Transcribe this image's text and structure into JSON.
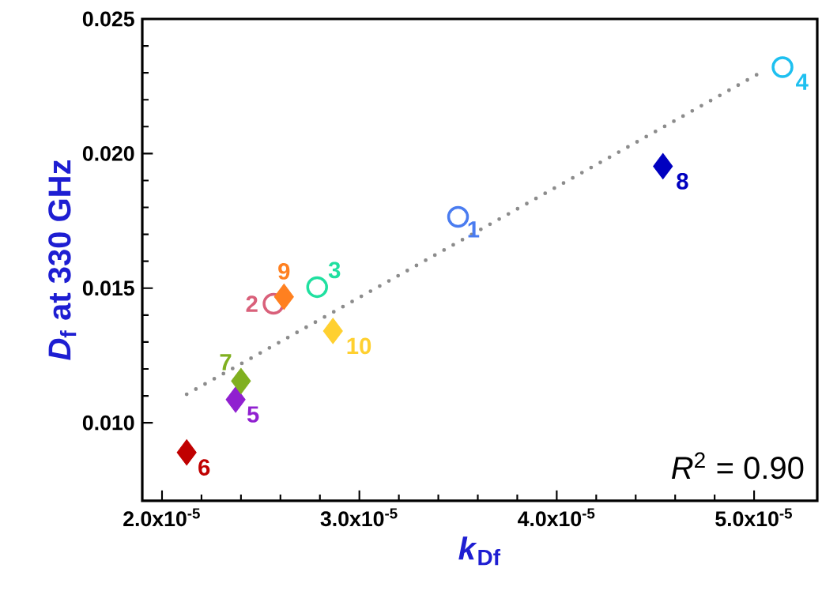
{
  "chart_data": {
    "type": "scatter",
    "xlabel": "*k*$_{Df}$",
    "ylabel": "*D*$_{f}$ at 330 GHz",
    "xlim": [
      1.9e-05,
      5.32e-05
    ],
    "ylim": [
      0.0071,
      0.025
    ],
    "xticks": [
      {
        "value": 2e-05,
        "label": "2.0x10$^{-5}$"
      },
      {
        "value": 3e-05,
        "label": "3.0x10$^{-5}$"
      },
      {
        "value": 4e-05,
        "label": "4.0x10$^{-5}$"
      },
      {
        "value": 5e-05,
        "label": "5.0x10$^{-5}$"
      }
    ],
    "yticks": [
      {
        "value": 0.01,
        "label": "0.010"
      },
      {
        "value": 0.015,
        "label": "0.015"
      },
      {
        "value": 0.02,
        "label": "0.020"
      },
      {
        "value": 0.025,
        "label": "0.025"
      }
    ],
    "series": [
      {
        "type": "line",
        "line_style": "dotted",
        "marker": "none",
        "color": "#8c8c8c",
        "x": [
          2.125e-05,
          5.026e-05
        ],
        "values": [
          0.01106,
          0.02298
        ]
      },
      {
        "name": "1",
        "marker": "circle",
        "color": "#4a7cf0",
        "x": [
          3.5e-05
        ],
        "values": [
          0.01765
        ]
      },
      {
        "name": "2",
        "marker": "circle",
        "color": "#d9607a",
        "x": [
          2.565e-05
        ],
        "values": [
          0.01442
        ]
      },
      {
        "name": "3",
        "marker": "circle",
        "color": "#20e0a0",
        "x": [
          2.786e-05
        ],
        "values": [
          0.01504
        ]
      },
      {
        "name": "4",
        "marker": "circle",
        "color": "#1ec0f0",
        "x": [
          5.144e-05
        ],
        "values": [
          0.02321
        ]
      },
      {
        "name": "5",
        "marker": "diamond",
        "color": "#9020d0",
        "x": [
          2.373e-05
        ],
        "values": [
          0.01086
        ]
      },
      {
        "name": "6",
        "marker": "diamond",
        "color": "#c00000",
        "x": [
          2.125e-05
        ],
        "values": [
          0.0089
        ]
      },
      {
        "name": "7",
        "marker": "diamond",
        "color": "#80b020",
        "x": [
          2.4e-05
        ],
        "values": [
          0.01155
        ]
      },
      {
        "name": "8",
        "marker": "diamond",
        "color": "#0000c0",
        "x": [
          4.538e-05
        ],
        "values": [
          0.01953
        ]
      },
      {
        "name": "9",
        "marker": "diamond",
        "color": "#ff8020",
        "x": [
          2.618e-05
        ],
        "values": [
          0.01468
        ]
      },
      {
        "name": "10",
        "marker": "diamond",
        "color": "#ffd030",
        "x": [
          2.866e-05
        ],
        "values": [
          0.01341
        ]
      }
    ],
    "annotations": [
      "*R*$^{2}$ = 0.90"
    ]
  }
}
